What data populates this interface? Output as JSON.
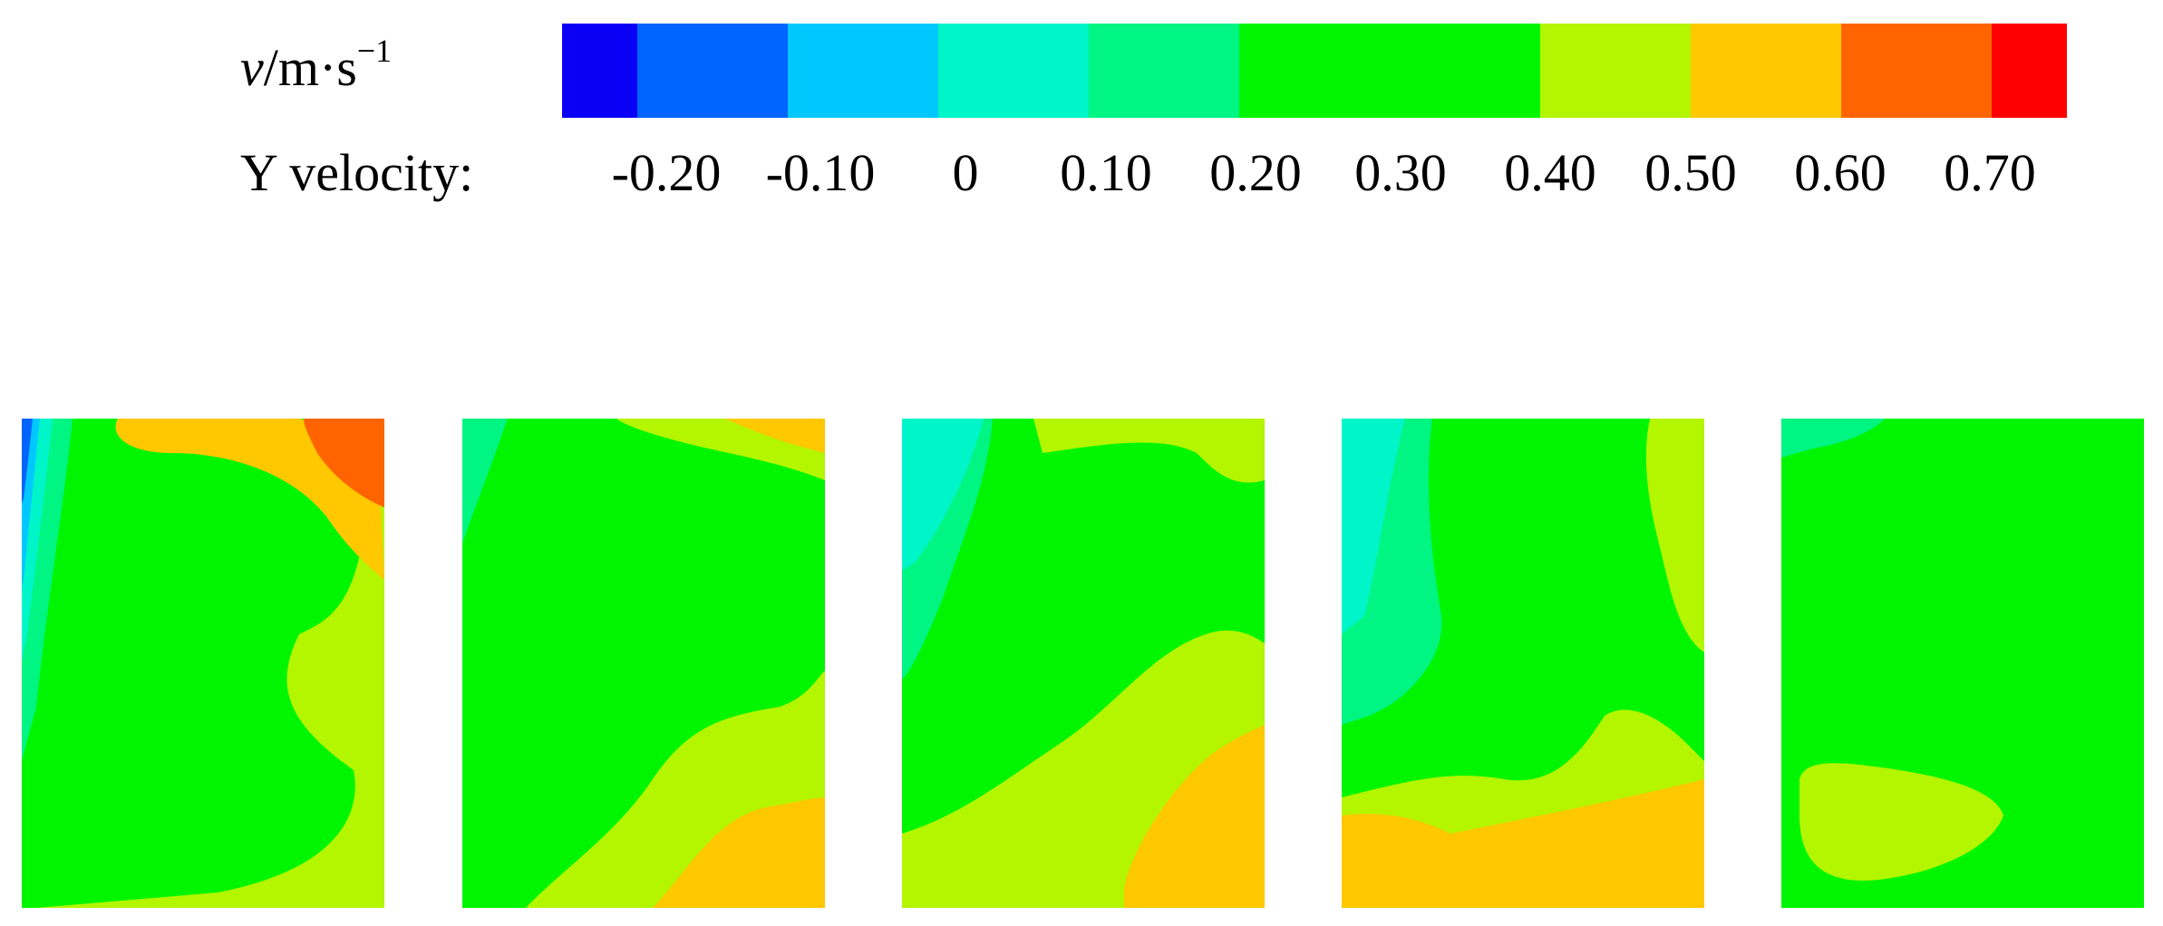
{
  "legend": {
    "symbol": "v",
    "unit": "/m·s",
    "exponent": "−1",
    "label": "Y velocity:",
    "ticks": [
      "-0.20",
      "-0.10",
      "0",
      "0.10",
      "0.20",
      "0.30",
      "0.40",
      "0.50",
      "0.60",
      "0.70"
    ],
    "bands": [
      {
        "color": "#0a00f5",
        "span": 1
      },
      {
        "color": "#0064ff",
        "span": 2
      },
      {
        "color": "#00c8ff",
        "span": 2
      },
      {
        "color": "#00f5c8",
        "span": 2
      },
      {
        "color": "#00f582",
        "span": 2
      },
      {
        "color": "#00f500",
        "span": 4
      },
      {
        "color": "#b4f500",
        "span": 2
      },
      {
        "color": "#ffc800",
        "span": 2
      },
      {
        "color": "#ff6400",
        "span": 2
      },
      {
        "color": "#ff0000",
        "span": 1
      }
    ]
  },
  "colors": {
    "dark_blue": "#0a00f5",
    "blue": "#0064ff",
    "light_blue": "#00c8ff",
    "cyan": "#00f5c8",
    "aqua_green": "#00f582",
    "green": "#00f500",
    "yellow_green": "#b4f500",
    "orange_yellow": "#ffc800",
    "orange": "#ff6400",
    "red": "#ff0000"
  },
  "panels": [
    {
      "name": "contour-panel-1"
    },
    {
      "name": "contour-panel-2"
    },
    {
      "name": "contour-panel-3"
    },
    {
      "name": "contour-panel-4"
    },
    {
      "name": "contour-panel-5"
    }
  ]
}
